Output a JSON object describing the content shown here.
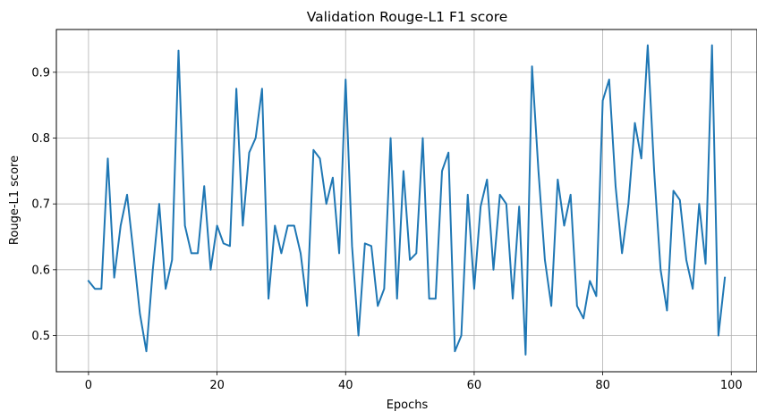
{
  "chart_data": {
    "type": "line",
    "title": "Validation Rouge-L1 F1 score",
    "xlabel": "Epochs",
    "ylabel": "Rouge-L1 score",
    "xlim": [
      -5,
      104
    ],
    "ylim": [
      0.445,
      0.965
    ],
    "grid": true,
    "legend": "none",
    "x_ticks": [
      0,
      20,
      40,
      60,
      80,
      100
    ],
    "x_tick_labels": [
      "0",
      "20",
      "40",
      "60",
      "80",
      "100"
    ],
    "y_ticks": [
      0.5,
      0.6,
      0.7,
      0.8,
      0.9
    ],
    "y_tick_labels": [
      "0.5",
      "0.6",
      "0.7",
      "0.8",
      "0.9"
    ],
    "series": [
      {
        "color": "#1f77b4",
        "x": [
          0,
          1,
          2,
          3,
          4,
          5,
          6,
          7,
          8,
          9,
          10,
          11,
          12,
          13,
          14,
          15,
          16,
          17,
          18,
          19,
          20,
          21,
          22,
          23,
          24,
          25,
          26,
          27,
          28,
          29,
          30,
          31,
          32,
          33,
          34,
          35,
          36,
          37,
          38,
          39,
          40,
          41,
          42,
          43,
          44,
          45,
          46,
          47,
          48,
          49,
          50,
          51,
          52,
          53,
          54,
          55,
          56,
          57,
          58,
          59,
          60,
          61,
          62,
          63,
          64,
          65,
          66,
          67,
          68,
          69,
          70,
          71,
          72,
          73,
          74,
          75,
          76,
          77,
          78,
          79,
          80,
          81,
          82,
          83,
          84,
          85,
          86,
          87,
          88,
          89,
          90,
          91,
          92,
          93,
          94,
          95,
          96,
          97,
          98,
          99
        ],
        "values": [
          0.583,
          0.571,
          0.571,
          0.769,
          0.588,
          0.667,
          0.714,
          0.625,
          0.533,
          0.476,
          0.6,
          0.7,
          0.571,
          0.615,
          0.933,
          0.667,
          0.625,
          0.625,
          0.727,
          0.6,
          0.667,
          0.64,
          0.636,
          0.875,
          0.667,
          0.778,
          0.8,
          0.875,
          0.556,
          0.667,
          0.625,
          0.667,
          0.667,
          0.625,
          0.545,
          0.782,
          0.769,
          0.7,
          0.74,
          0.625,
          0.889,
          0.636,
          0.5,
          0.64,
          0.636,
          0.545,
          0.571,
          0.8,
          0.556,
          0.75,
          0.615,
          0.625,
          0.8,
          0.556,
          0.556,
          0.75,
          0.778,
          0.476,
          0.5,
          0.714,
          0.571,
          0.696,
          0.737,
          0.6,
          0.714,
          0.7,
          0.556,
          0.696,
          0.471,
          0.909,
          0.75,
          0.615,
          0.545,
          0.737,
          0.667,
          0.714,
          0.545,
          0.526,
          0.583,
          0.56,
          0.857,
          0.889,
          0.727,
          0.625,
          0.7,
          0.823,
          0.769,
          0.941,
          0.75,
          0.6,
          0.538,
          0.72,
          0.706,
          0.615,
          0.571,
          0.7,
          0.609,
          0.941,
          0.5,
          0.588
        ]
      }
    ]
  }
}
